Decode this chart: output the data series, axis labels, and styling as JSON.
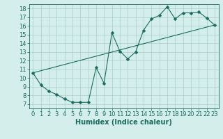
{
  "title": "",
  "xlabel": "Humidex (Indice chaleur)",
  "bg_color": "#d4eeec",
  "line_color": "#1a6b5e",
  "grid_color": "#aaceca",
  "xlim": [
    -0.5,
    23.5
  ],
  "ylim": [
    6.5,
    18.5
  ],
  "xticks": [
    0,
    1,
    2,
    3,
    4,
    5,
    6,
    7,
    8,
    9,
    10,
    11,
    12,
    13,
    14,
    15,
    16,
    17,
    18,
    19,
    20,
    21,
    22,
    23
  ],
  "yticks": [
    7,
    8,
    9,
    10,
    11,
    12,
    13,
    14,
    15,
    16,
    17,
    18
  ],
  "line1_x": [
    0,
    1,
    2,
    3,
    4,
    5,
    6,
    7,
    8,
    9,
    10,
    11,
    12,
    13,
    14,
    15,
    16,
    17,
    18,
    19,
    20,
    21,
    22,
    23
  ],
  "line1_y": [
    10.6,
    9.2,
    8.5,
    8.1,
    7.6,
    7.2,
    7.2,
    7.2,
    11.2,
    9.4,
    15.2,
    13.1,
    12.2,
    13.0,
    15.5,
    16.8,
    17.2,
    18.2,
    16.8,
    17.5,
    17.5,
    17.6,
    16.9,
    16.1
  ],
  "line2_x": [
    0,
    23
  ],
  "line2_y": [
    10.6,
    16.1
  ],
  "marker_size": 2.5,
  "font_size": 6,
  "xlabel_font_size": 7
}
